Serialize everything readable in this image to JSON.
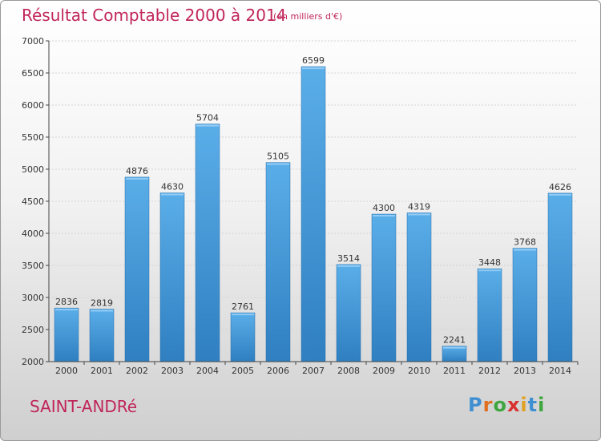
{
  "chart_data": {
    "type": "bar",
    "title": "Résultat Comptable 2000 à 2014",
    "subtitle": "(en milliers d'€)",
    "categories": [
      "2000",
      "2001",
      "2002",
      "2003",
      "2004",
      "2005",
      "2006",
      "2007",
      "2008",
      "2009",
      "2010",
      "2011",
      "2012",
      "2013",
      "2014"
    ],
    "values": [
      2836,
      2819,
      4876,
      4630,
      5704,
      2761,
      5105,
      6599,
      3514,
      4300,
      4319,
      2241,
      3448,
      3768,
      4626
    ],
    "ylim": [
      2000,
      7000
    ],
    "yticks": [
      2000,
      2500,
      3000,
      3500,
      4000,
      4500,
      5000,
      5500,
      6000,
      6500,
      7000
    ],
    "grid": true,
    "bar_color": "#4f9ed9"
  },
  "footer": {
    "commune": "SAINT-ANDRé",
    "logo_letters": [
      {
        "ch": "P",
        "color": "#3f8fd2"
      },
      {
        "ch": "r",
        "color": "#e07020"
      },
      {
        "ch": "o",
        "color": "#3fa63f"
      },
      {
        "ch": "x",
        "color": "#d8322e"
      },
      {
        "ch": "i",
        "color": "#e0a020"
      },
      {
        "ch": "t",
        "color": "#3f8fd2"
      },
      {
        "ch": "i",
        "color": "#3fa63f"
      }
    ]
  }
}
